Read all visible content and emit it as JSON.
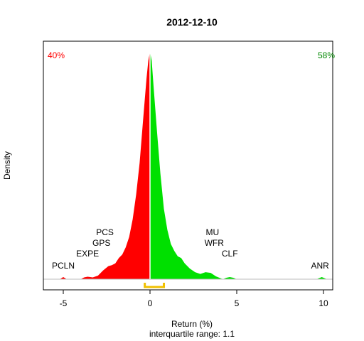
{
  "chart_data": {
    "type": "area",
    "title": "2012-12-10",
    "xlabel": "Return (%)",
    "subtitle": "interquartile range: 1.1",
    "ylabel": "Density",
    "xlim": [
      -6.2,
      10.6
    ],
    "ylim": [
      0,
      0.66
    ],
    "xticks": [
      -5,
      0,
      5,
      10
    ],
    "tick_labels": [
      "-5",
      "0",
      "5",
      "10"
    ],
    "pct_negative": "40%",
    "pct_positive": "58%",
    "colors": {
      "negative": "#ff0000",
      "positive": "#00e000",
      "iqr_bracket": "#f0c000",
      "baseline": "#bbbbbb"
    },
    "iqr": [
      -0.3,
      0.8
    ],
    "density": {
      "x": [
        -5.2,
        -5.0,
        -4.8,
        -4.0,
        -3.8,
        -3.6,
        -3.3,
        -3.0,
        -2.7,
        -2.4,
        -2.2,
        -2.0,
        -1.8,
        -1.6,
        -1.4,
        -1.2,
        -1.0,
        -0.8,
        -0.6,
        -0.4,
        -0.2,
        -0.1,
        0.0,
        0.1,
        0.2,
        0.4,
        0.6,
        0.8,
        1.0,
        1.2,
        1.4,
        1.6,
        1.8,
        2.0,
        2.3,
        2.6,
        2.9,
        3.2,
        3.5,
        3.8,
        4.2,
        4.4,
        4.6,
        4.8,
        5.0,
        9.6,
        9.9,
        10.2
      ],
      "y": [
        0,
        0.006,
        0,
        0,
        0.005,
        0.007,
        0.005,
        0.01,
        0.025,
        0.037,
        0.04,
        0.045,
        0.06,
        0.07,
        0.09,
        0.12,
        0.17,
        0.24,
        0.33,
        0.45,
        0.57,
        0.62,
        0.645,
        0.62,
        0.55,
        0.42,
        0.3,
        0.2,
        0.14,
        0.1,
        0.08,
        0.065,
        0.06,
        0.045,
        0.03,
        0.02,
        0.015,
        0.02,
        0.018,
        0.008,
        0,
        0.004,
        0.006,
        0.004,
        0,
        0,
        0.006,
        0
      ]
    },
    "annotations": [
      {
        "text": "PCLN",
        "x": -5.0,
        "y": 0.03
      },
      {
        "text": "EXPE",
        "x": -3.6,
        "y": 0.065
      },
      {
        "text": "GPS",
        "x": -2.8,
        "y": 0.095
      },
      {
        "text": "PCS",
        "x": -2.6,
        "y": 0.125
      },
      {
        "text": "MU",
        "x": 3.6,
        "y": 0.125
      },
      {
        "text": "WFR",
        "x": 3.7,
        "y": 0.095
      },
      {
        "text": "CLF",
        "x": 4.6,
        "y": 0.065
      },
      {
        "text": "ANR",
        "x": 9.8,
        "y": 0.03
      }
    ]
  }
}
